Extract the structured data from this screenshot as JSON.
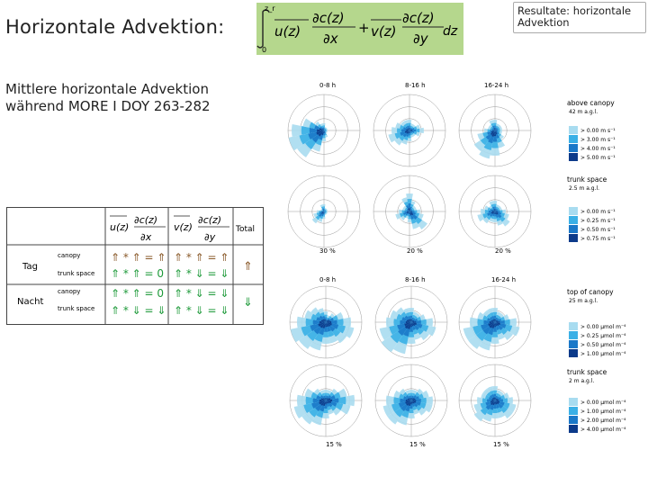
{
  "slide": {
    "title": "Horizontale Advektion:",
    "tag": "Resultate: horizontale Advektion",
    "subtitle_line1": "Mittlere horizontale Advektion",
    "subtitle_line2": "während MORE I DOY 263-282"
  },
  "formula": {
    "int_upper": "z_r",
    "int_lower": "0",
    "term_u": "u(z)",
    "term_v": "v(z)",
    "numerator": "∂c(z)",
    "den_x": "∂x",
    "den_y": "∂y",
    "dz": "dz",
    "plus": "+"
  },
  "table": {
    "total_label": "Total",
    "row_groups": [
      {
        "label": "Tag",
        "rows": [
          {
            "level": "canopy",
            "u_cell": "⇑ * ⇑ = ⇑",
            "v_cell": "⇑ * ⇑ = ⇑"
          },
          {
            "level": "trunk space",
            "u_cell": "⇑ * ⇑ = 0",
            "v_cell": "⇑ * ⇓ = ⇓"
          }
        ],
        "total": "⇑"
      },
      {
        "label": "Nacht",
        "rows": [
          {
            "level": "canopy",
            "u_cell": "⇑ * ⇑ = 0",
            "v_cell": "⇑ * ⇓ = ⇓"
          },
          {
            "level": "trunk space",
            "u_cell": "⇑ * ⇓ = ⇓",
            "v_cell": "⇑ * ⇓ = ⇓"
          }
        ],
        "total": "⇓"
      }
    ]
  },
  "roses_top": {
    "panel_labels": [
      "0-8 h",
      "8-16 h",
      "16-24 h"
    ],
    "scale_labels": [
      "30 %",
      "20 %",
      "20 %"
    ],
    "legend_above": {
      "title": "above canopy",
      "sub": "42 m a.g.l.",
      "items": [
        "> 0.00 m s⁻¹",
        "> 3.00 m s⁻¹",
        "> 4.00 m s⁻¹",
        "> 5.00 m s⁻¹"
      ]
    },
    "legend_trunk": {
      "title": "trunk space",
      "sub": "2.5 m a.g.l.",
      "items": [
        "> 0.00 m s⁻¹",
        "> 0.25 m s⁻¹",
        "> 0.50 m s⁻¹",
        "> 0.75 m s⁻¹"
      ]
    }
  },
  "roses_bottom": {
    "panel_labels": [
      "0-8 h",
      "8-16 h",
      "16-24 h"
    ],
    "scale_labels": [
      "15 %",
      "15 %",
      "15 %"
    ],
    "legend_top": {
      "title": "top of canopy",
      "sub": "25 m a.g.l.",
      "items": [
        "> 0.00 µmol m⁻⁴",
        "> 0.25 µmol m⁻⁴",
        "> 0.50 µmol m⁻⁴",
        "> 1.00 µmol m⁻⁴"
      ]
    },
    "legend_trunk": {
      "title": "trunk space",
      "sub": "2 m a.g.l.",
      "items": [
        "> 0.00 µmol m⁻⁴",
        "> 1.00 µmol m⁻⁴",
        "> 2.00 µmol m⁻⁴",
        "> 4.00 µmol m⁻⁴"
      ]
    }
  },
  "colors": {
    "formula_bg": "#b5d78d",
    "rose_light": "#a8dcf0",
    "rose_mid": "#3ab0e6",
    "rose_dark": "#1a78c8",
    "rose_darkest": "#0c3a8a",
    "arrow_up": "#8a5a2a",
    "arrow_green": "#1e9a3a"
  }
}
